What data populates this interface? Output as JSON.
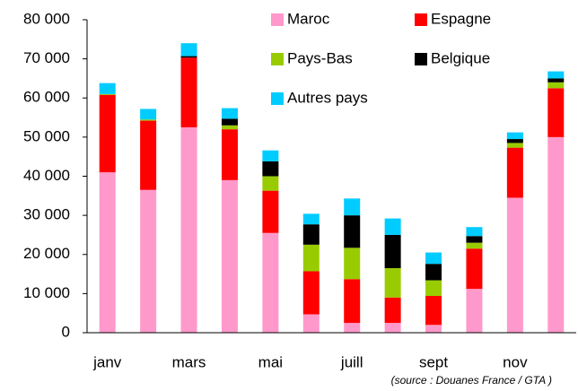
{
  "chart_data": {
    "type": "bar",
    "stacked": true,
    "categories": [
      "janv",
      null,
      "mars",
      null,
      "mai",
      null,
      "juill",
      null,
      "sept",
      null,
      "nov",
      null
    ],
    "series": [
      {
        "name": "Maroc",
        "color": "#ff99cc",
        "values": [
          41000,
          36500,
          52500,
          39000,
          25500,
          4700,
          2500,
          2500,
          2000,
          11200,
          34500,
          50000
        ]
      },
      {
        "name": "Espagne",
        "color": "#ff0000",
        "values": [
          19800,
          17700,
          17800,
          13000,
          10800,
          11000,
          11200,
          6500,
          7400,
          10300,
          12800,
          12500
        ]
      },
      {
        "name": "Pays-Bas",
        "color": "#99cc00",
        "values": [
          200,
          300,
          0,
          1000,
          3700,
          6800,
          8000,
          7500,
          4000,
          1500,
          1200,
          1500
        ]
      },
      {
        "name": "Belgique",
        "color": "#000000",
        "values": [
          0,
          0,
          400,
          1700,
          3800,
          5200,
          8300,
          8500,
          4200,
          1700,
          1000,
          1000
        ]
      },
      {
        "name": "Autres pays",
        "color": "#00ccff",
        "values": [
          2800,
          2700,
          3300,
          2700,
          2800,
          2700,
          4300,
          4200,
          2900,
          2300,
          1700,
          1800
        ]
      }
    ],
    "ylim": [
      0,
      80000
    ],
    "yticks": [
      0,
      {
        "value": 10000,
        "label": "10 000"
      },
      {
        "value": 20000,
        "label": "20 000"
      },
      {
        "value": 30000,
        "label": "30 000"
      },
      {
        "value": 40000,
        "label": "40 000"
      },
      {
        "value": 50000,
        "label": "50 000"
      },
      {
        "value": 60000,
        "label": "60 000"
      },
      {
        "value": 70000,
        "label": "70 000"
      },
      {
        "value": 80000,
        "label": "80 000"
      }
    ],
    "grid": false,
    "annotation": "(source : Douanes France / GTA )"
  }
}
